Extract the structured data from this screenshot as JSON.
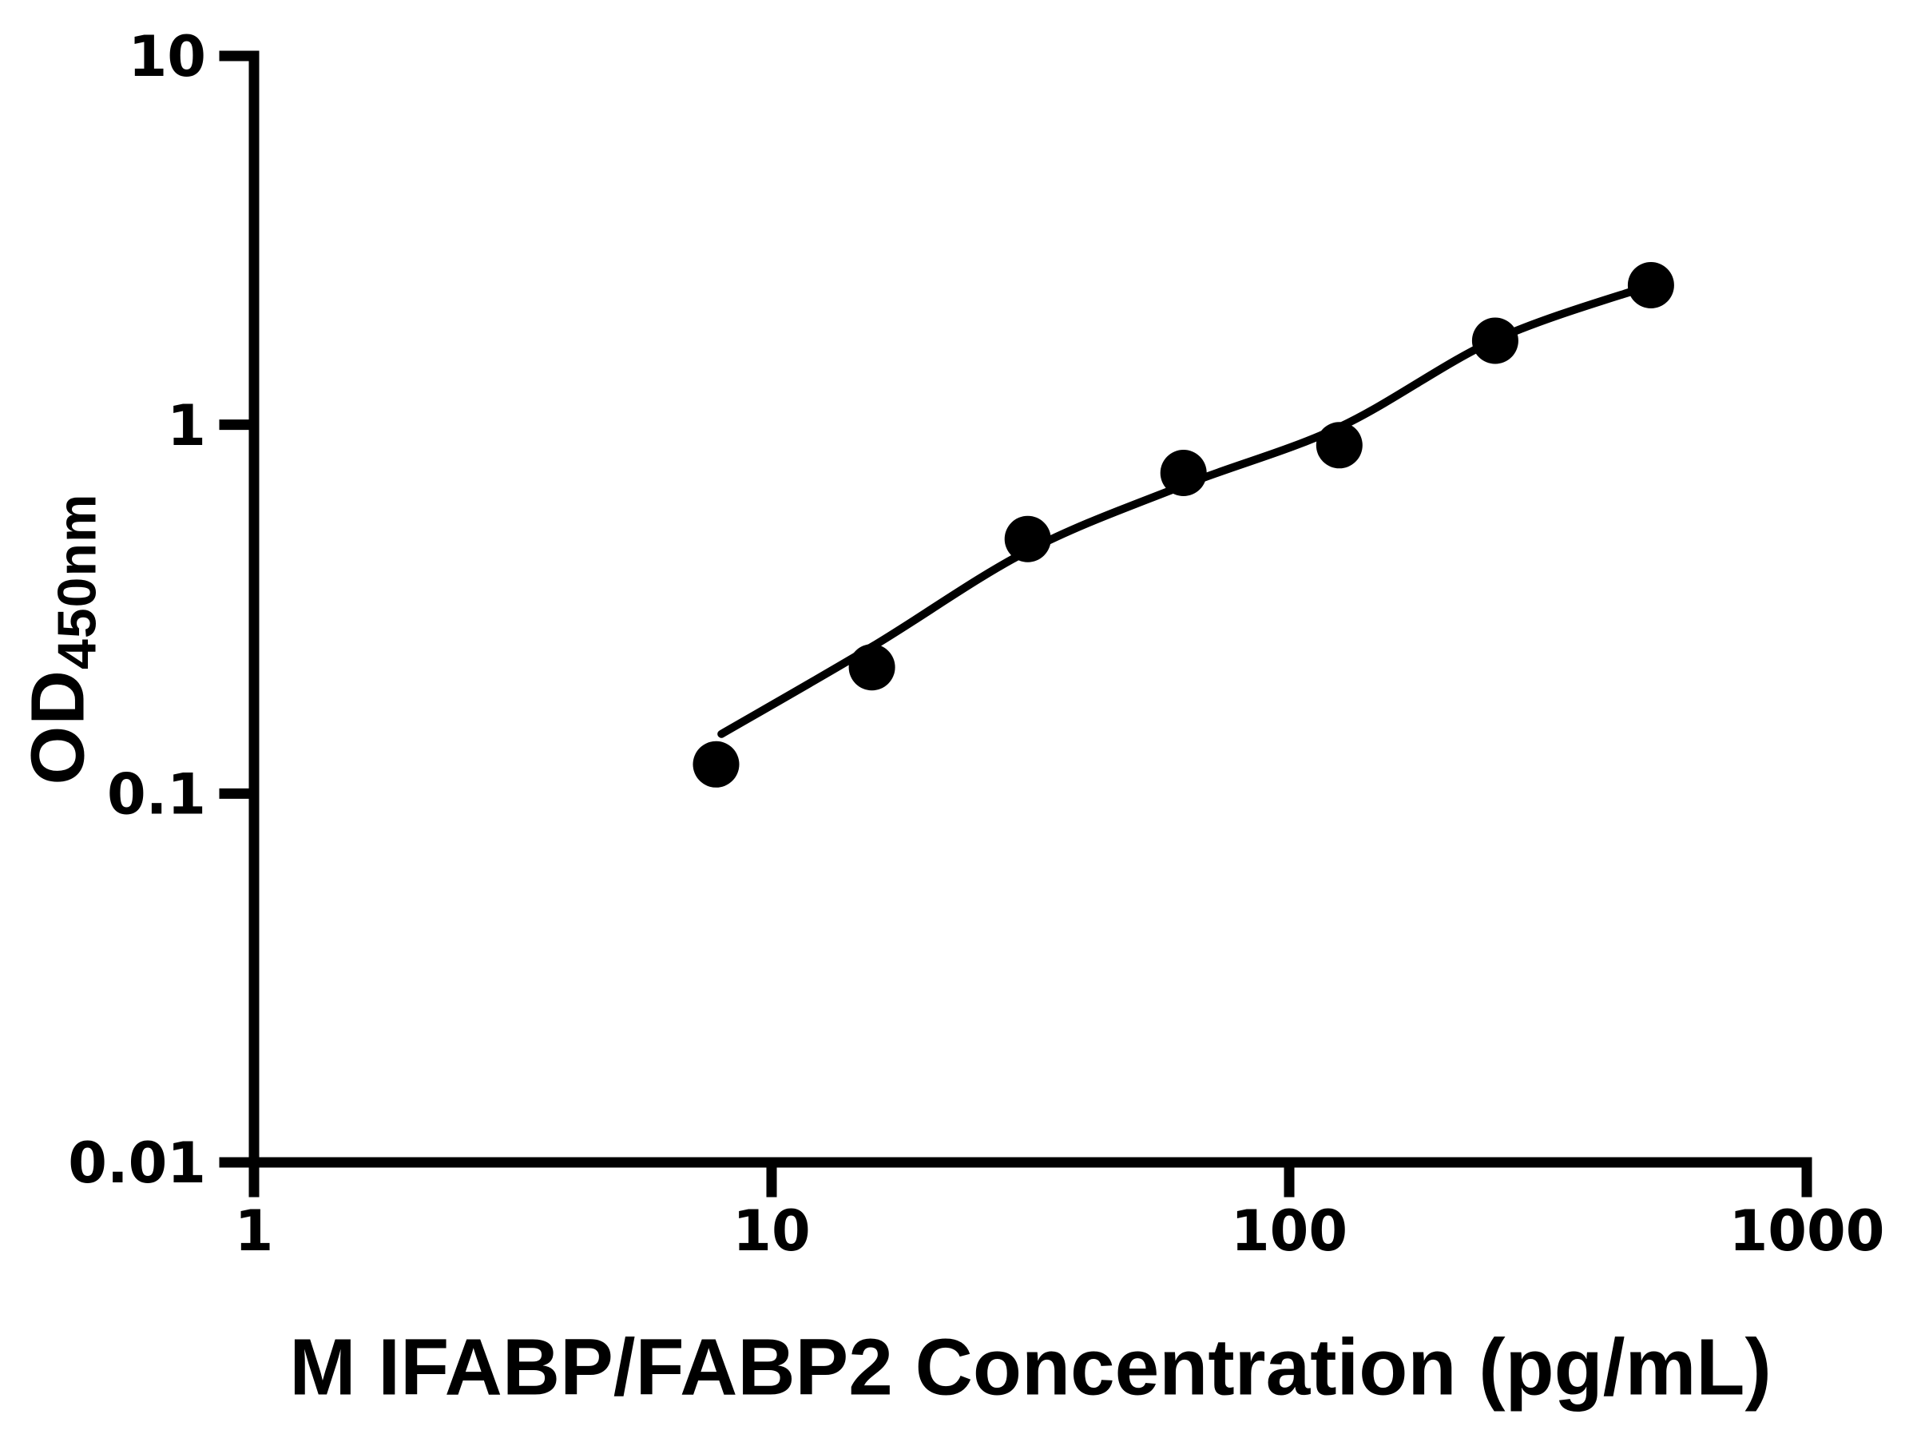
{
  "figure": {
    "background_color": "#ffffff",
    "ink_color": "#000000"
  },
  "chart_data": {
    "type": "scatter",
    "title": "",
    "xlabel": "M IFABP/FABP2 Concentration (pg/mL)",
    "ylabel_main": "OD",
    "ylabel_sub": "450nm",
    "x_scale": "log",
    "y_scale": "log",
    "xlim": [
      1,
      1000
    ],
    "ylim": [
      0.01,
      10
    ],
    "x_ticks": [
      1,
      10,
      100,
      1000
    ],
    "x_tick_labels": [
      "1",
      "10",
      "100",
      "1000"
    ],
    "y_ticks": [
      0.01,
      0.1,
      1,
      10
    ],
    "y_tick_labels": [
      "0.01",
      "0.1",
      "1",
      "10"
    ],
    "grid": false,
    "legend": false,
    "series": [
      {
        "name": "standard-data-points",
        "type": "scatter",
        "marker": "filled-circle",
        "color": "#000000",
        "x": [
          7.8125,
          15.625,
          31.25,
          62.5,
          125,
          250,
          500
        ],
        "y": [
          0.12,
          0.22,
          0.49,
          0.74,
          0.88,
          1.69,
          2.39
        ]
      },
      {
        "name": "fitted-standard-curve",
        "type": "line",
        "color": "#000000",
        "x": [
          8.0,
          15.625,
          31.25,
          62.5,
          125,
          250,
          500
        ],
        "y": [
          0.145,
          0.25,
          0.455,
          0.685,
          0.985,
          1.7,
          2.39
        ]
      }
    ]
  }
}
